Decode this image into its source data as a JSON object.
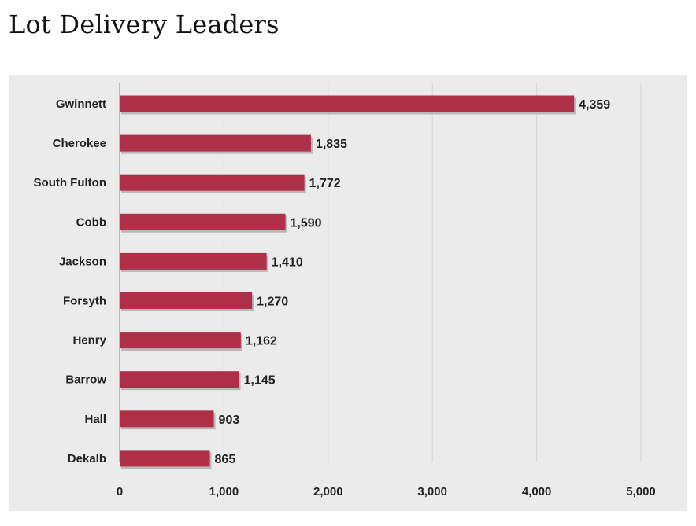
{
  "page": {
    "title": "Lot Delivery Leaders"
  },
  "colors": {
    "bar": "#ae2f47",
    "bar_shadow": "#b9b9b9",
    "grid": "#d4d4d4",
    "axis": "#9a9a9a",
    "panel": "#ebebeb",
    "text": "#222222"
  },
  "chart_data": {
    "type": "bar",
    "orientation": "horizontal",
    "title": "",
    "xlabel": "",
    "ylabel": "",
    "categories": [
      "Gwinnett",
      "Cherokee",
      "South Fulton",
      "Cobb",
      "Jackson",
      "Forsyth",
      "Henry",
      "Barrow",
      "Hall",
      "Dekalb"
    ],
    "values": [
      4359,
      1835,
      1772,
      1590,
      1410,
      1270,
      1162,
      1145,
      903,
      865
    ],
    "value_labels": [
      "4,359",
      "1,835",
      "1,772",
      "1,590",
      "1,410",
      "1,270",
      "1,162",
      "1,145",
      "903",
      "865"
    ],
    "xlim": [
      0,
      5000
    ],
    "xticks": [
      0,
      1000,
      2000,
      3000,
      4000,
      5000
    ],
    "xtick_labels": [
      "0",
      "1,000",
      "2,000",
      "3,000",
      "4,000",
      "5,000"
    ],
    "grid": true,
    "legend": "none"
  }
}
